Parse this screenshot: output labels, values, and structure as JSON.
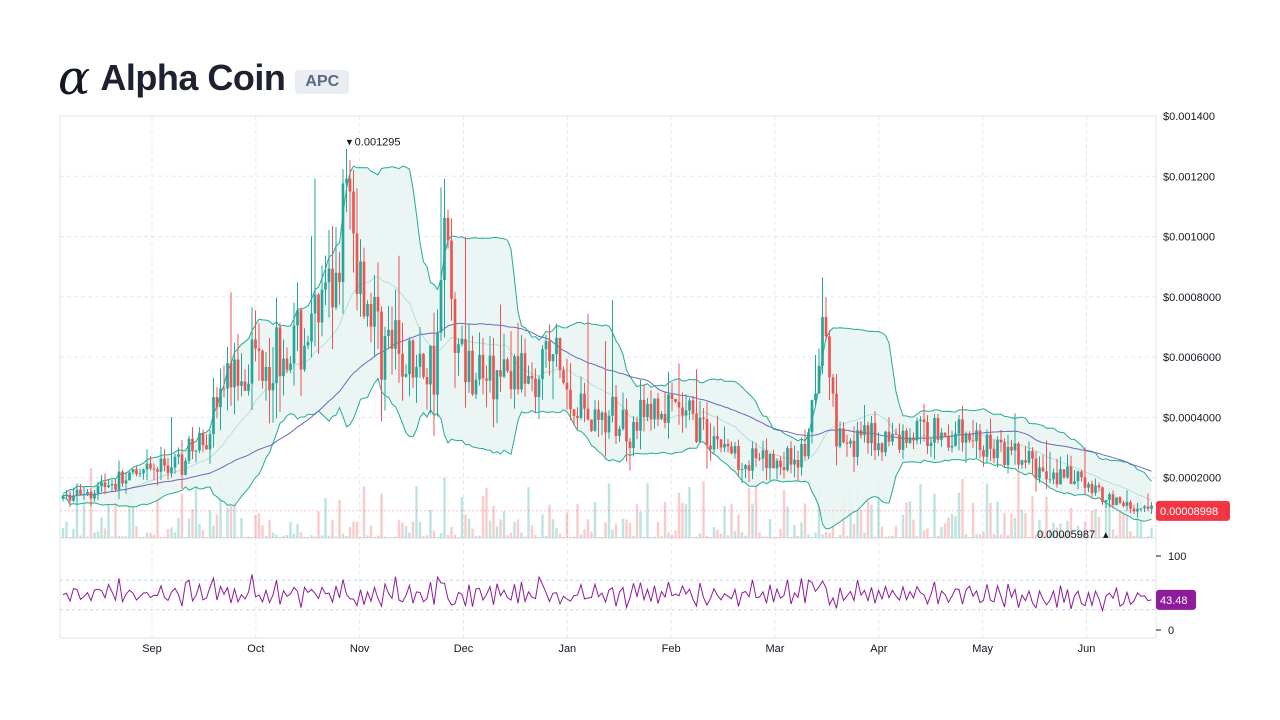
{
  "header": {
    "logo_glyph": "α",
    "coin_name": "Alpha Coin",
    "ticker": "APC"
  },
  "colors": {
    "up": "#26a69a",
    "down": "#ef5350",
    "bollinger": "#22ab94",
    "bollinger_fill": "#e9f5f3",
    "sma": "#5b5bb5",
    "rsi": "#8e1a9c",
    "last_price_tag": "#f23645",
    "rsi_tag": "#8e1a9c",
    "grid": "#e6e8ee"
  },
  "chart_data": {
    "type": "candlestick",
    "x_axis": {
      "tick_labels": [
        "Sep",
        "Oct",
        "Nov",
        "Dec",
        "Jan",
        "Feb",
        "Mar",
        "Apr",
        "May",
        "Jun"
      ]
    },
    "price_axis": {
      "range": [
        0,
        0.0014
      ],
      "tick_values": [
        0.0002,
        0.0004,
        0.0006,
        0.0008,
        0.001,
        0.0012,
        0.0014
      ],
      "tick_labels": [
        "$0.0002000",
        "$0.0004000",
        "$0.0006000",
        "$0.0008000",
        "$0.001000",
        "$0.001200",
        "$0.001400"
      ]
    },
    "price_anchors_by_day": [
      [
        0,
        0.00013
      ],
      [
        8,
        0.00016
      ],
      [
        15,
        0.00018
      ],
      [
        25,
        0.0002
      ],
      [
        35,
        0.00024
      ],
      [
        45,
        0.0003
      ],
      [
        55,
        0.00052
      ],
      [
        62,
        0.0006
      ],
      [
        72,
        0.00062
      ],
      [
        80,
        0.00065
      ],
      [
        90,
        0.0008
      ],
      [
        95,
        0.0011
      ],
      [
        100,
        0.00085
      ],
      [
        105,
        0.0007
      ],
      [
        112,
        0.0006
      ],
      [
        120,
        0.00055
      ],
      [
        125,
        0.0006
      ],
      [
        128,
        0.001
      ],
      [
        133,
        0.0006
      ],
      [
        140,
        0.00055
      ],
      [
        150,
        0.00052
      ],
      [
        160,
        0.0006
      ],
      [
        165,
        0.0006
      ],
      [
        170,
        0.00045
      ],
      [
        180,
        0.0004
      ],
      [
        190,
        0.00038
      ],
      [
        200,
        0.00042
      ],
      [
        210,
        0.0004
      ],
      [
        218,
        0.00034
      ],
      [
        225,
        0.00028
      ],
      [
        235,
        0.00024
      ],
      [
        245,
        0.00027
      ],
      [
        250,
        0.0003
      ],
      [
        255,
        0.0007
      ],
      [
        260,
        0.00034
      ],
      [
        270,
        0.00032
      ],
      [
        280,
        0.00033
      ],
      [
        290,
        0.00036
      ],
      [
        300,
        0.00034
      ],
      [
        305,
        0.00032
      ],
      [
        315,
        0.00028
      ],
      [
        320,
        0.00026
      ],
      [
        330,
        0.00022
      ],
      [
        340,
        0.00019
      ],
      [
        350,
        0.00014
      ],
      [
        358,
        0.0001
      ],
      [
        365,
        9e-05
      ]
    ],
    "series": [
      {
        "name": "Bollinger Bands",
        "type": "band"
      },
      {
        "name": "SMA",
        "type": "line"
      },
      {
        "name": "Volume",
        "type": "histogram"
      }
    ],
    "annotations": {
      "high_label": "0.001295",
      "low_label": "0.00005987",
      "last_price": "0.00008998"
    },
    "rsi": {
      "name": "RSI",
      "range": [
        0,
        100
      ],
      "tick_labels": [
        "100",
        "0"
      ],
      "upper_band": 70,
      "lower_band": 30,
      "current": "43.48",
      "baseline": 50
    }
  }
}
